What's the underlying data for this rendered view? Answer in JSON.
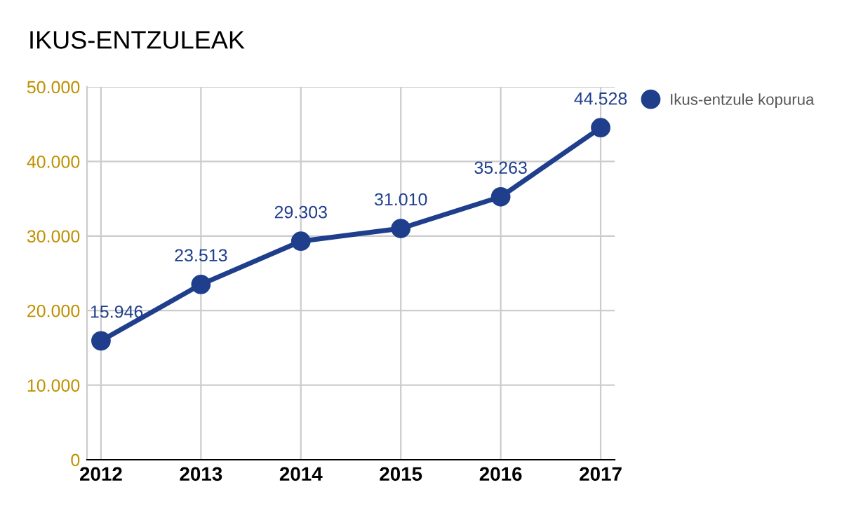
{
  "chart_data": {
    "type": "line",
    "title": "IKUS-ENTZULEAK",
    "categories": [
      "2012",
      "2013",
      "2014",
      "2015",
      "2016",
      "2017"
    ],
    "series": [
      {
        "name": "Ikus-entzule kopurua",
        "color": "#1f3f8c",
        "values": [
          15946,
          23513,
          29303,
          31010,
          35263,
          44528
        ],
        "value_labels": [
          "15.946",
          "23.513",
          "29.303",
          "31.010",
          "35.263",
          "44.528"
        ]
      }
    ],
    "ylim": [
      0,
      50000
    ],
    "yticks": [
      0,
      {
        "value": 10000,
        "label": "10.000"
      },
      {
        "value": 20000,
        "label": "20.000"
      },
      {
        "value": 30000,
        "label": "30.000"
      },
      {
        "value": 40000,
        "label": "40.000"
      },
      {
        "value": 50000,
        "label": "50.000"
      }
    ],
    "grid": true,
    "legend": "top right",
    "marker": "circle",
    "line_style": "solid"
  }
}
